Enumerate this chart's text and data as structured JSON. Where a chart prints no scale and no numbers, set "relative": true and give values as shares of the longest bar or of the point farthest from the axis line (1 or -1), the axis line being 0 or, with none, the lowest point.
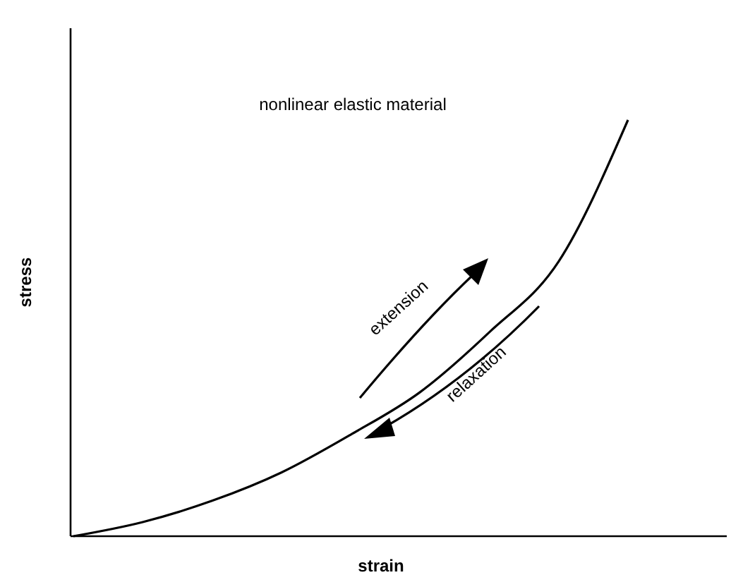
{
  "chart_data": {
    "type": "line",
    "relative": true,
    "xlabel": "strain",
    "ylabel": "stress",
    "categories": [
      null,
      null,
      null,
      null,
      null,
      null,
      null,
      null,
      null
    ],
    "series": [
      {
        "color": "#000000",
        "values": [
          0,
          0.034,
          0.085,
          0.153,
          0.244,
          0.346,
          0.49,
          0.66,
          1
        ]
      }
    ],
    "annotations": [
      "nonlinear elastic material",
      "extension",
      "relaxation"
    ],
    "marker": "none",
    "line_style": "solid"
  }
}
